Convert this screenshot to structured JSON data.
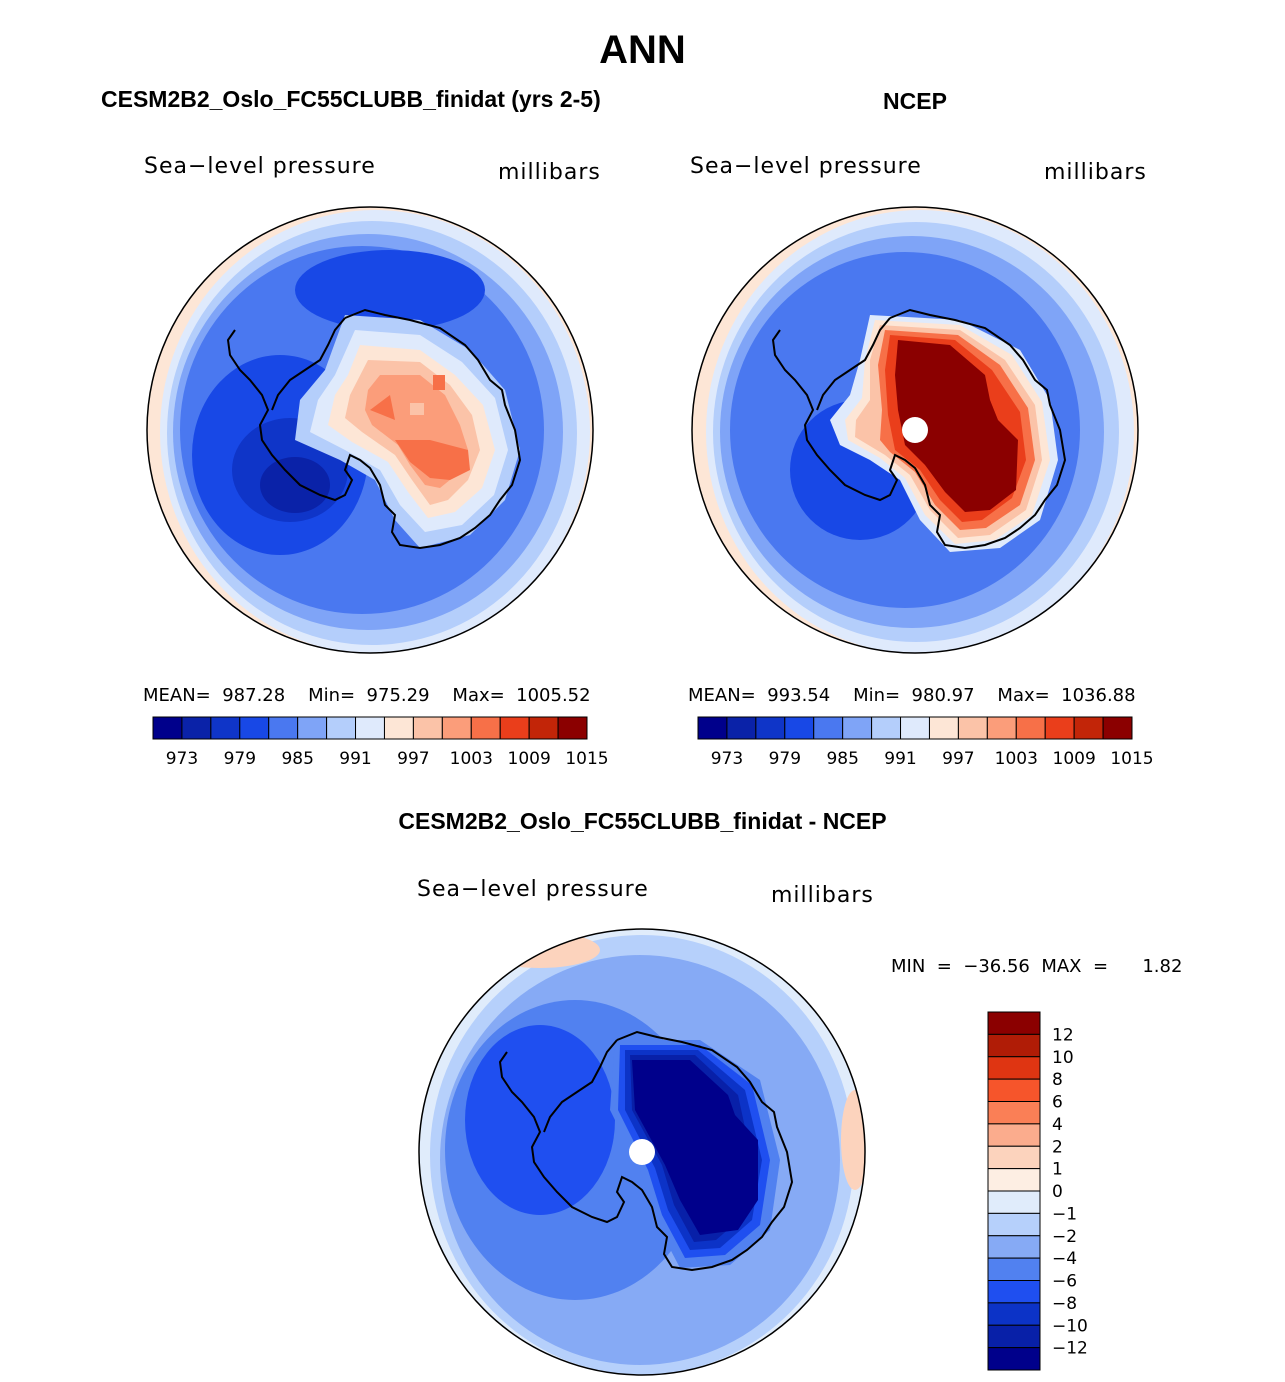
{
  "main_title": "ANN",
  "panels": [
    {
      "id": "model",
      "title": "CESM2B2_Oslo_FC55CLUBB_finidat (yrs 2-5)",
      "variable": "Sea−level pressure",
      "units": "millibars",
      "stats": "MEAN=  987.28    Min=  975.29    Max=  1005.52"
    },
    {
      "id": "obs",
      "title": "NCEP",
      "variable": "Sea−level pressure",
      "units": "millibars",
      "stats": "MEAN=  993.54    Min=  980.97    Max=  1036.88"
    },
    {
      "id": "diff",
      "title": "CESM2B2_Oslo_FC55CLUBB_finidat - NCEP",
      "variable": "Sea−level pressure",
      "units": "millibars",
      "stats": "MIN  =  −36.56  MAX  =      1.82"
    }
  ],
  "abs_colorbar": {
    "colors": [
      "#00008b",
      "#0a22a8",
      "#0f35c8",
      "#1848e6",
      "#4a78f0",
      "#7fa4f7",
      "#b4cefb",
      "#dfeafc",
      "#fde6d6",
      "#fbc3a8",
      "#fb9d7a",
      "#f77048",
      "#ea3e1b",
      "#c22508",
      "#8b0000"
    ],
    "tick_labels": [
      "973",
      "979",
      "985",
      "991",
      "997",
      "1003",
      "1009",
      "1015"
    ]
  },
  "diff_colorbar": {
    "colors": [
      "#8b0000",
      "#b01c06",
      "#df3512",
      "#f6552b",
      "#fa7f56",
      "#fbac8d",
      "#fcd3bd",
      "#fdeee3",
      "#e0ecfb",
      "#b6d0fb",
      "#86aaf5",
      "#5181f0",
      "#1f4ff0",
      "#0c33c7",
      "#0820a8",
      "#00008b"
    ],
    "tick_labels": [
      "12",
      "10",
      "8",
      "6",
      "4",
      "2",
      "1",
      "0",
      "−1",
      "−2",
      "−4",
      "−6",
      "−8",
      "−10",
      "−12"
    ]
  }
}
